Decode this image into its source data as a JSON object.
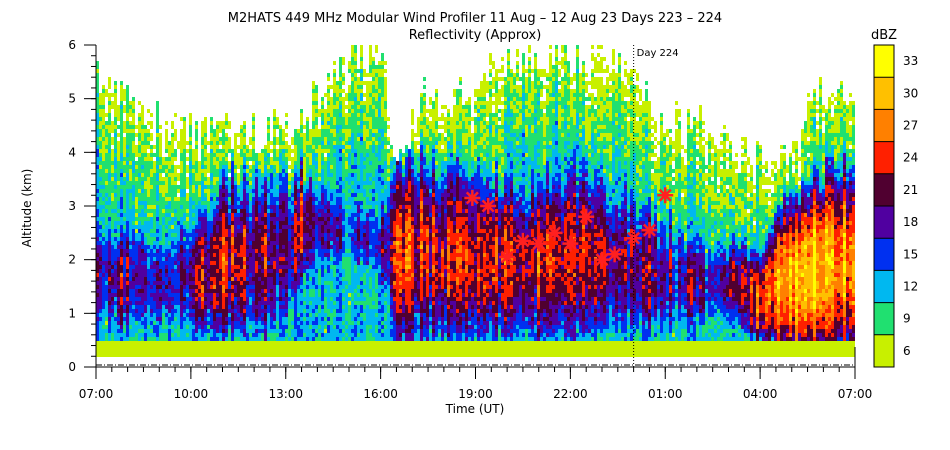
{
  "chart_data": {
    "type": "heatmap",
    "title": "M2HATS 449 MHz Modular Wind Profiler  11 Aug – 12 Aug 23 Days 223 – 224",
    "subtitle": "Reflectivity (Approx)",
    "xlabel": "Time (UT)",
    "ylabel": "Altitude (km)",
    "x_ticks": [
      "07:00",
      "10:00",
      "13:00",
      "16:00",
      "19:00",
      "22:00",
      "01:00",
      "04:00",
      "07:00"
    ],
    "x_tick_hours": [
      0,
      3,
      6,
      9,
      12,
      15,
      18,
      21,
      24
    ],
    "xlim_hours": [
      0,
      24
    ],
    "y_ticks": [
      "0",
      "1",
      "2",
      "3",
      "4",
      "5",
      "6"
    ],
    "ylim": [
      0,
      6
    ],
    "day_marker": {
      "label": "Day 224",
      "hour": 17
    },
    "colorbar": {
      "label": "dBZ",
      "ticks": [
        "33",
        "30",
        "27",
        "24",
        "21",
        "18",
        "15",
        "12",
        "9",
        "6"
      ],
      "levels": [
        6,
        9,
        12,
        15,
        18,
        21,
        24,
        27,
        30,
        33,
        36
      ],
      "colors": [
        "#c8f000",
        "#20e070",
        "#00b8f0",
        "#0030f0",
        "#5000a0",
        "#500030",
        "#ff2000",
        "#ff8000",
        "#ffc000",
        "#ffff00"
      ]
    },
    "boundary_layer_markers": {
      "color": "#ff2020",
      "points": [
        {
          "hour": 11.9,
          "alt": 3.15
        },
        {
          "hour": 12.4,
          "alt": 3.0
        },
        {
          "hour": 13.0,
          "alt": 2.05
        },
        {
          "hour": 13.5,
          "alt": 2.35
        },
        {
          "hour": 14.0,
          "alt": 2.3
        },
        {
          "hour": 14.5,
          "alt": 2.5
        },
        {
          "hour": 15.0,
          "alt": 2.3
        },
        {
          "hour": 15.5,
          "alt": 2.8
        },
        {
          "hour": 16.0,
          "alt": 2.0
        },
        {
          "hour": 16.4,
          "alt": 2.1
        },
        {
          "hour": 17.0,
          "alt": 2.4
        },
        {
          "hour": 17.5,
          "alt": 2.55
        },
        {
          "hour": 18.0,
          "alt": 3.2
        }
      ]
    },
    "echo_structure": {
      "hours": [
        0,
        1,
        2,
        3,
        4,
        5,
        6,
        6.5,
        7,
        8,
        9,
        9.5,
        10,
        10.5,
        11,
        12,
        13,
        14,
        15,
        16,
        17,
        18,
        19,
        20,
        21,
        21.5,
        22,
        22.5,
        23,
        24
      ],
      "echo_top_km": [
        5.6,
        5.0,
        4.5,
        4.3,
        4.3,
        4.4,
        4.6,
        4.7,
        5.0,
        5.8,
        5.9,
        4.0,
        4.5,
        5.3,
        5.0,
        5.2,
        5.8,
        5.9,
        5.8,
        5.9,
        5.2,
        4.6,
        4.5,
        4.3,
        3.9,
        4.0,
        4.3,
        4.7,
        5.0,
        5.3
      ],
      "strong_layer_base_km": [
        0.6,
        0.6,
        0.6,
        0.6,
        0.6,
        0.6,
        0.6,
        1.6,
        1.8,
        1.9,
        1.5,
        0.6,
        0.6,
        0.6,
        0.6,
        0.6,
        0.6,
        0.6,
        0.6,
        0.6,
        0.6,
        0.6,
        0.7,
        0.8,
        0.5,
        0.5,
        0.5,
        0.5,
        0.5,
        0.5
      ],
      "strong_layer_top_km": [
        2.8,
        2.7,
        2.6,
        2.8,
        3.2,
        3.5,
        3.6,
        3.6,
        3.5,
        3.3,
        3.0,
        3.6,
        3.6,
        3.6,
        3.6,
        3.4,
        3.3,
        3.4,
        3.6,
        3.5,
        3.2,
        2.8,
        2.5,
        2.3,
        2.2,
        2.6,
        2.8,
        3.0,
        3.2,
        3.4
      ],
      "peak_dbz": [
        20,
        21,
        20,
        22,
        24,
        22,
        21,
        25,
        20,
        18,
        19,
        27,
        26,
        24,
        24,
        25,
        25,
        24,
        24,
        24,
        22,
        21,
        20,
        21,
        26,
        30,
        31,
        31,
        30,
        28
      ]
    }
  }
}
